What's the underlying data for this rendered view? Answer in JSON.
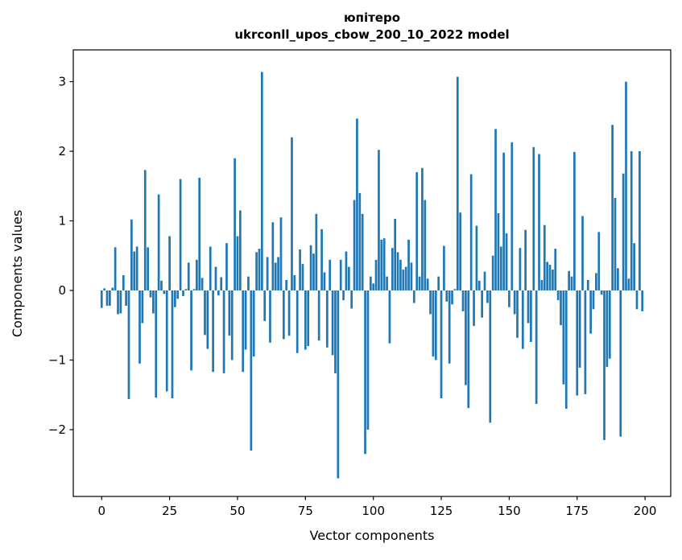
{
  "figure": {
    "title": "юпітеро",
    "subtitle": "ukrconll_upos_cbow_200_10_2022 model"
  },
  "chart_data": {
    "type": "bar",
    "title": "юпітеро",
    "subtitle": "ukrconll_upos_cbow_200_10_2022 model",
    "xlabel": "Vector components",
    "ylabel": "Components values",
    "bar_color": "#1f77b4",
    "axis_color": "#000000",
    "grid": false,
    "legend": "none",
    "xlim": [
      -10.45,
      209.45
    ],
    "ylim": [
      -2.96,
      3.457
    ],
    "x_tick_values": [
      0,
      25,
      50,
      75,
      100,
      125,
      150,
      175,
      200
    ],
    "x_tick_labels": [
      "0",
      "25",
      "50",
      "75",
      "100",
      "125",
      "150",
      "175",
      "200"
    ],
    "y_tick_values": [
      3,
      2,
      1,
      0,
      -1,
      -2
    ],
    "y_tick_labels": [
      "3",
      "2",
      "1",
      "0",
      "−1",
      "−2"
    ],
    "x": "index 0..199",
    "values": [
      -0.25,
      0.03,
      -0.22,
      -0.22,
      0.04,
      0.62,
      -0.34,
      -0.33,
      0.22,
      -0.22,
      -1.56,
      1.02,
      0.56,
      0.63,
      -1.05,
      -0.47,
      1.73,
      0.62,
      -0.1,
      -0.33,
      -1.54,
      1.38,
      0.14,
      -0.05,
      -1.45,
      0.78,
      -1.55,
      -0.24,
      -0.12,
      1.6,
      -0.08,
      0.02,
      0.4,
      -1.15,
      0.02,
      0.44,
      1.62,
      0.18,
      -0.64,
      -0.84,
      0.63,
      -1.17,
      0.34,
      -0.07,
      0.19,
      -1.19,
      0.68,
      -0.65,
      -1.0,
      1.9,
      0.78,
      1.15,
      -1.17,
      -0.85,
      0.2,
      -2.3,
      -0.95,
      0.55,
      0.6,
      3.14,
      -0.44,
      0.48,
      -0.75,
      0.98,
      0.4,
      0.48,
      1.05,
      -0.7,
      0.15,
      -0.65,
      2.2,
      0.22,
      -0.9,
      0.59,
      0.38,
      -0.85,
      -0.8,
      0.65,
      0.53,
      1.1,
      -0.72,
      0.88,
      0.26,
      -0.82,
      0.44,
      -0.93,
      -1.19,
      -2.7,
      0.44,
      -0.14,
      0.56,
      0.34,
      -0.26,
      1.3,
      2.47,
      1.4,
      1.1,
      -2.35,
      -2.0,
      0.2,
      0.1,
      0.44,
      2.02,
      0.73,
      0.75,
      0.2,
      -0.76,
      0.61,
      1.03,
      0.55,
      0.44,
      0.3,
      0.34,
      0.73,
      0.4,
      -0.18,
      1.7,
      0.2,
      1.76,
      1.3,
      0.17,
      -0.34,
      -0.95,
      -1.0,
      0.2,
      -1.55,
      0.64,
      -0.16,
      -1.05,
      -0.2,
      0.02,
      3.07,
      1.12,
      -0.3,
      -1.36,
      -1.69,
      1.67,
      -0.51,
      0.93,
      0.14,
      -0.39,
      0.27,
      -0.18,
      -1.9,
      0.5,
      2.32,
      1.11,
      0.63,
      1.98,
      0.82,
      -0.24,
      2.13,
      -0.34,
      -0.68,
      0.61,
      -0.84,
      0.87,
      -0.47,
      -0.74,
      2.06,
      -1.63,
      1.96,
      0.15,
      0.94,
      0.41,
      0.37,
      0.3,
      0.6,
      -0.14,
      -0.5,
      -1.35,
      -1.7,
      0.28,
      0.2,
      1.99,
      -1.51,
      -1.11,
      1.07,
      -1.49,
      0.15,
      -0.62,
      -0.27,
      0.25,
      0.84,
      -0.06,
      -2.15,
      -1.1,
      -0.98,
      2.38,
      1.33,
      0.32,
      -2.1,
      1.68,
      3.0,
      0.17,
      2.0,
      0.68,
      -0.27,
      2.0,
      -0.3
    ]
  }
}
